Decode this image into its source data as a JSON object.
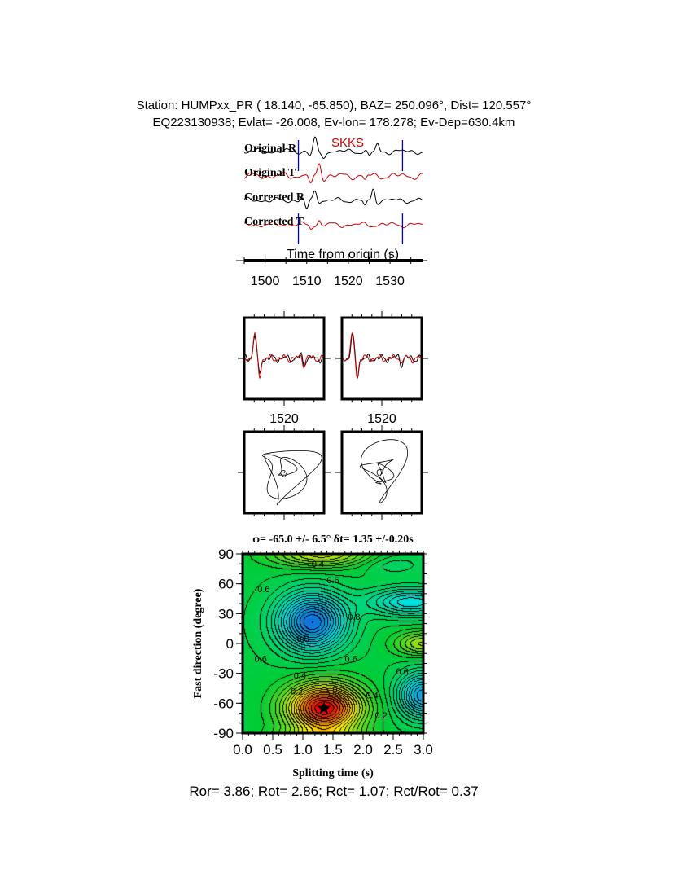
{
  "header": {
    "line1": "Station: HUMPxx_PR (  18.140,  -65.850), BAZ=  250.096°, Dist=  120.557°",
    "line2": "EQ223130938; Evlat= -26.008, Ev-lon= 178.278; Ev-Dep=630.4km"
  },
  "colors": {
    "radial": "#000000",
    "transverse": "#cc0000",
    "window": "#0000cc",
    "phase": "#cc0000"
  },
  "chart_data": [
    {
      "type": "line",
      "phase_label": "SKKS",
      "trace_labels": [
        "Original R",
        "Original T",
        "Corrected R",
        "Corrected T"
      ],
      "xlabel": "Time from origin (s)",
      "xticks": [
        1500,
        1510,
        1520,
        1530
      ],
      "xlim": [
        1495,
        1538
      ],
      "window": [
        1508,
        1533
      ]
    },
    {
      "type": "line",
      "panels": [
        "fast-slow-uncorrected",
        "fast-slow-corrected"
      ],
      "xtick_labels": [
        "1520",
        "1520"
      ]
    },
    {
      "type": "line",
      "panels": [
        "particle-motion-original",
        "particle-motion-corrected"
      ]
    },
    {
      "type": "heatmap",
      "title": "φ= -65.0 +/- 6.5° δt= 1.35 +/-0.20s",
      "xlabel": "Splitting time (s)",
      "ylabel": "Fast direction (degree)",
      "xlim": [
        0,
        3
      ],
      "ylim": [
        -90,
        90
      ],
      "xticks": [
        "0.0",
        "0.5",
        "1.0",
        "1.5",
        "2.0",
        "2.5",
        "3.0"
      ],
      "yticks": [
        "90",
        "60",
        "30",
        "0",
        "-30",
        "-60",
        "-90"
      ],
      "contour_labels": [
        "0.4",
        "0.6",
        "0.6",
        "0.8",
        "0.8",
        "0.6",
        "0.6",
        "0.6",
        "0.4",
        "0.2",
        "0.4",
        "0.2"
      ],
      "best_fit": {
        "dt": 1.35,
        "phi": -65.0
      },
      "colormap": [
        "#e00000",
        "#ffee00",
        "#00cc33",
        "#00e0e0",
        "#1060e0"
      ]
    }
  ],
  "footer": "Ror= 3.86; Rot= 2.86; Rct= 1.07; Rct/Rot= 0.37"
}
